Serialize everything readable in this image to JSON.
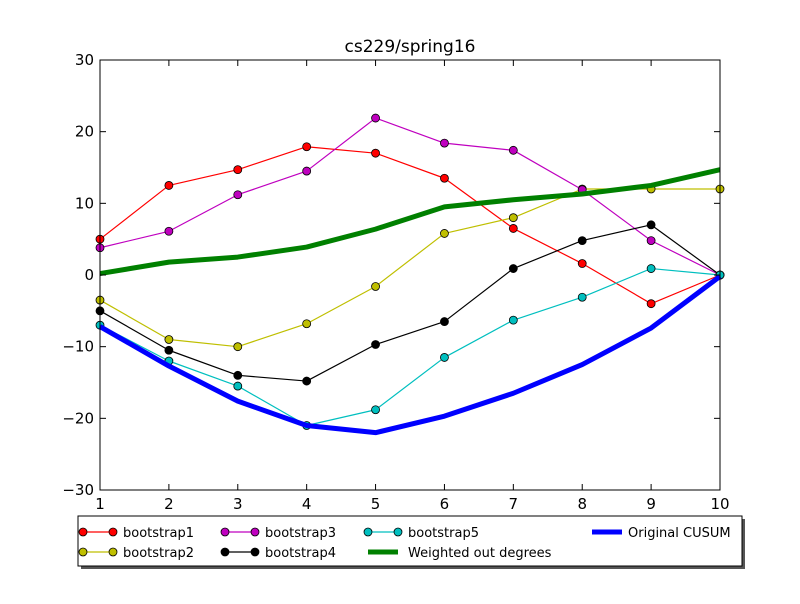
{
  "chart_data": {
    "type": "line",
    "title": "cs229/spring16",
    "xlabel": "",
    "ylabel": "",
    "xlim": [
      1,
      10
    ],
    "ylim": [
      -30,
      30
    ],
    "x": [
      1,
      2,
      3,
      4,
      5,
      6,
      7,
      8,
      9,
      10
    ],
    "xticks": [
      "1",
      "2",
      "3",
      "4",
      "5",
      "6",
      "7",
      "8",
      "9",
      "10"
    ],
    "yticks": [
      "30",
      "20",
      "10",
      "0",
      "−10",
      "−20",
      "−30"
    ],
    "grid": false,
    "legend_position": "bottom",
    "series": [
      {
        "name": "bootstrap1",
        "color": "#ff0000",
        "marker": "circle",
        "values": [
          5.0,
          12.5,
          14.7,
          17.9,
          17.0,
          13.5,
          6.5,
          1.6,
          -4.0,
          0
        ]
      },
      {
        "name": "bootstrap2",
        "color": "#bfbf00",
        "marker": "circle",
        "values": [
          -3.5,
          -9.0,
          -10.0,
          -6.8,
          -1.6,
          5.8,
          8.0,
          12.0,
          12.0,
          12.0
        ]
      },
      {
        "name": "bootstrap3",
        "color": "#bf00bf",
        "marker": "circle",
        "values": [
          3.8,
          6.1,
          11.2,
          14.5,
          21.9,
          18.4,
          17.4,
          11.9,
          4.8,
          0
        ]
      },
      {
        "name": "bootstrap4",
        "color": "#000000",
        "marker": "circle",
        "values": [
          -5.0,
          -10.5,
          -14.0,
          -14.8,
          -9.7,
          -6.5,
          0.9,
          4.8,
          7.0,
          0
        ]
      },
      {
        "name": "bootstrap5",
        "color": "#00bfbf",
        "marker": "circle",
        "values": [
          -7.0,
          -12.0,
          -15.5,
          -21.0,
          -18.8,
          -11.5,
          -6.3,
          -3.1,
          0.9,
          0
        ]
      },
      {
        "name": "Weighted out degrees",
        "color": "#008000",
        "marker": "none",
        "values": [
          0.2,
          1.8,
          2.5,
          3.9,
          6.4,
          9.5,
          10.5,
          11.3,
          12.5,
          14.7
        ]
      },
      {
        "name": "Original CUSUM",
        "color": "#0000ff",
        "marker": "none",
        "values": [
          -7.2,
          -12.7,
          -17.6,
          -21.0,
          -22.0,
          -19.7,
          -16.5,
          -12.5,
          -7.4,
          -0.2
        ]
      }
    ]
  }
}
